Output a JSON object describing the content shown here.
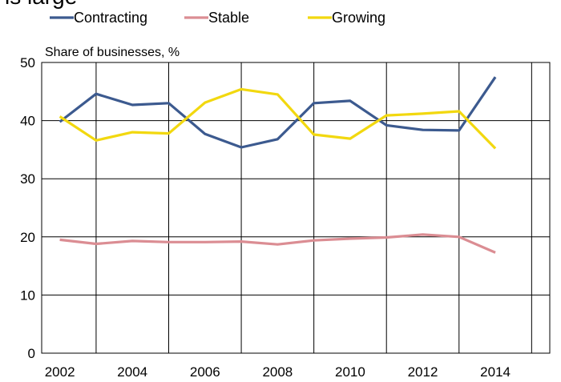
{
  "partial_title": "is large",
  "colors": {
    "contracting": "#3c5a8f",
    "stable": "#db8d93",
    "growing": "#f2d80f",
    "grid": "#000000"
  },
  "chart_data": {
    "type": "line",
    "ylabel": "Share of businesses,  %",
    "ylim": [
      0,
      50
    ],
    "yticks": [
      0,
      10,
      20,
      30,
      40,
      50
    ],
    "xlim": [
      2001.5,
      2015.5
    ],
    "xticks": [
      2002,
      2004,
      2006,
      2008,
      2010,
      2012,
      2014
    ],
    "grid": true,
    "legend_position": "top-left",
    "x": [
      2002,
      2003,
      2004,
      2005,
      2006,
      2007,
      2008,
      2009,
      2010,
      2011,
      2012,
      2013,
      2014
    ],
    "series": [
      {
        "name": "Contracting",
        "color_key": "contracting",
        "values": [
          39.8,
          44.6,
          42.7,
          43.0,
          37.7,
          35.4,
          36.8,
          43.0,
          43.4,
          39.2,
          38.4,
          38.3,
          47.5
        ]
      },
      {
        "name": "Stable",
        "color_key": "stable",
        "values": [
          19.5,
          18.8,
          19.3,
          19.1,
          19.1,
          19.2,
          18.7,
          19.4,
          19.7,
          19.9,
          20.4,
          20.0,
          17.3
        ]
      },
      {
        "name": "Growing",
        "color_key": "growing",
        "values": [
          40.7,
          36.6,
          38.0,
          37.8,
          43.1,
          45.4,
          44.5,
          37.6,
          36.9,
          40.9,
          41.2,
          41.6,
          35.2
        ]
      }
    ]
  }
}
